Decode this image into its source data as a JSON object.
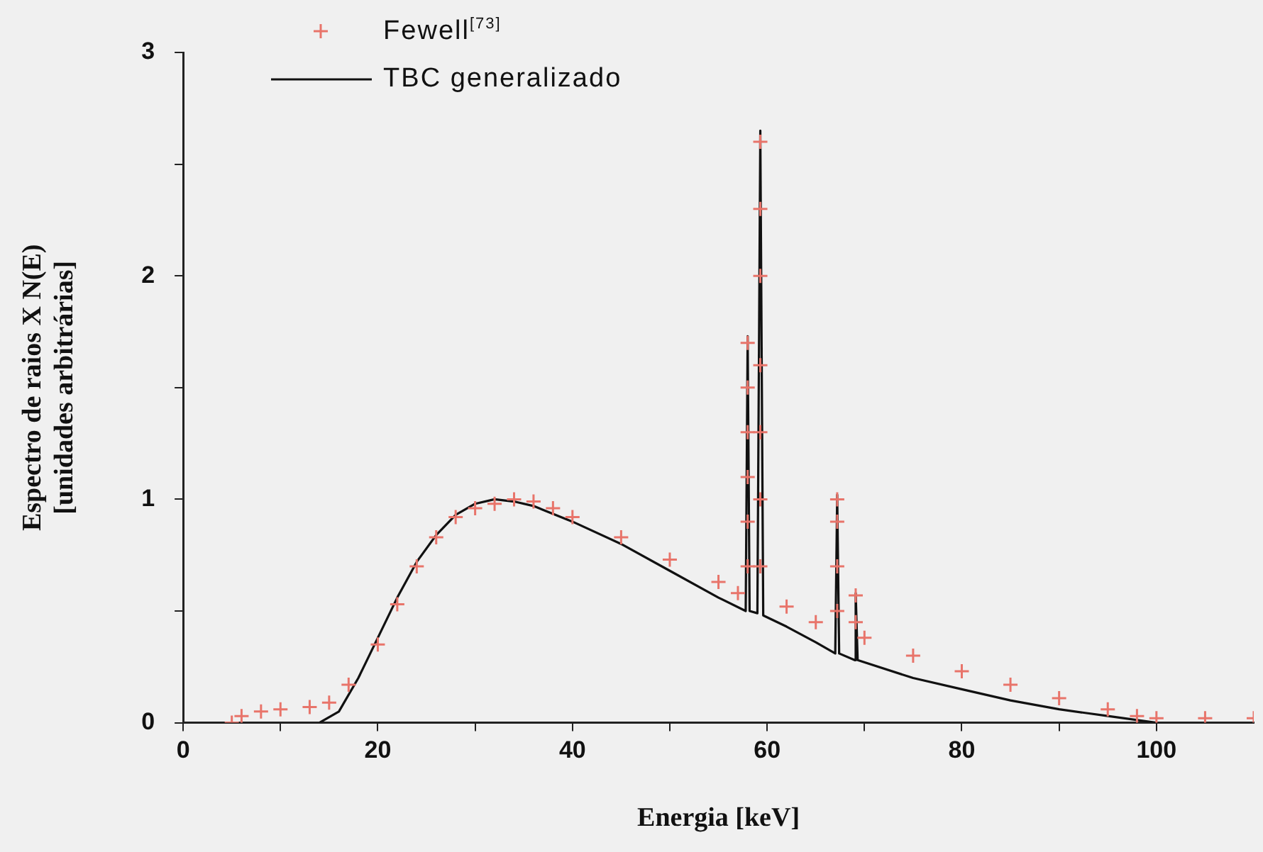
{
  "chart_data": {
    "type": "scatter",
    "xlabel": "Energia [keV]",
    "ylabel": "Espectro de raios X N(E)\n[unidades arbitrárias]",
    "xlim": [
      0,
      110
    ],
    "ylim": [
      0,
      3
    ],
    "xticks": [
      0,
      {
        "value": 10,
        "label": null
      },
      20,
      {
        "value": 30,
        "label": null
      },
      40,
      {
        "value": 50,
        "label": null
      },
      60,
      {
        "value": 70,
        "label": null
      },
      80,
      {
        "value": 90,
        "label": null
      },
      100
    ],
    "yticks": [
      0,
      {
        "value": 0.5,
        "label": null
      },
      1,
      {
        "value": 1.5,
        "label": null
      },
      2,
      {
        "value": 2.5,
        "label": null
      },
      3
    ],
    "grid": false,
    "legend": "top left",
    "series": [
      {
        "name": "Fewell$^{[73]}$",
        "marker": "cross",
        "color": "#e8746a",
        "x": [
          5,
          6,
          8,
          10,
          13,
          15,
          17,
          20,
          22,
          24,
          26,
          28,
          30,
          32,
          34,
          36,
          38,
          40,
          45,
          50,
          55,
          57,
          58,
          58,
          58,
          58,
          58,
          58,
          59.3,
          59.3,
          59.3,
          59.3,
          59.3,
          59.3,
          59.3,
          62,
          65,
          67.2,
          67.2,
          67.2,
          67.2,
          69.1,
          69.1,
          70,
          75,
          80,
          85,
          90,
          95,
          98,
          100,
          105,
          110
        ],
        "values": [
          0,
          0.03,
          0.05,
          0.06,
          0.07,
          0.09,
          0.17,
          0.35,
          0.53,
          0.7,
          0.83,
          0.92,
          0.96,
          0.98,
          1,
          0.99,
          0.96,
          0.92,
          0.83,
          0.73,
          0.63,
          0.58,
          0.7,
          0.9,
          1.1,
          1.3,
          1.5,
          1.7,
          0.7,
          1,
          1.3,
          1.6,
          2,
          2.3,
          2.6,
          0.52,
          0.45,
          0.5,
          0.7,
          0.9,
          1,
          0.45,
          0.57,
          0.38,
          0.3,
          0.23,
          0.17,
          0.11,
          0.06,
          0.03,
          0.02,
          0.02,
          0.02
        ]
      },
      {
        "name": "TBC generalizado",
        "type": "line",
        "marker": "none",
        "line_style": "solid",
        "color": "#111111",
        "x": [
          14,
          16,
          18,
          20,
          22,
          24,
          26,
          28,
          30,
          32,
          34,
          36,
          40,
          45,
          50,
          55,
          57.8,
          58,
          58.2,
          59,
          59.3,
          59.6,
          62,
          65,
          67,
          67.2,
          67.4,
          69,
          69.1,
          69.3,
          75,
          80,
          85,
          90,
          95,
          100
        ],
        "values": [
          0,
          0.05,
          0.2,
          0.38,
          0.56,
          0.72,
          0.84,
          0.93,
          0.98,
          1,
          0.99,
          0.97,
          0.9,
          0.8,
          0.68,
          0.56,
          0.5,
          1.73,
          0.5,
          0.49,
          2.65,
          0.48,
          0.43,
          0.36,
          0.31,
          1.02,
          0.31,
          0.28,
          0.58,
          0.28,
          0.2,
          0.15,
          0.1,
          0.06,
          0.03,
          0
        ]
      }
    ]
  }
}
